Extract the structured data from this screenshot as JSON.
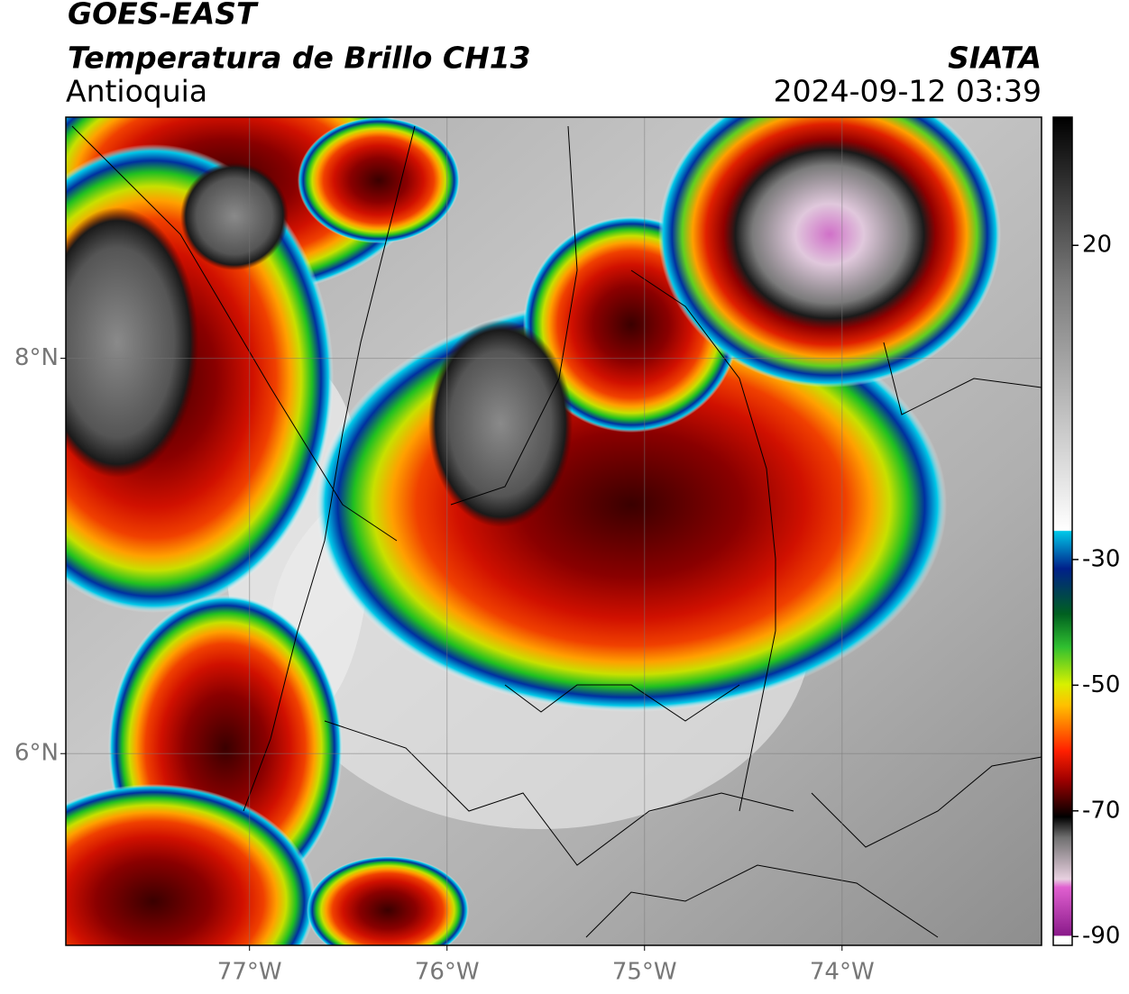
{
  "header": {
    "satellite": "GOES-EAST",
    "product": "Temperatura de Brillo CH13",
    "source": "SIATA",
    "region": "Antioquia",
    "datetime": "2024-09-12 03:39"
  },
  "map": {
    "lonlim": [
      -77.93,
      -72.99
    ],
    "latlim": [
      5.03,
      9.22
    ],
    "lon_ticks": [
      {
        "value": -77,
        "label": "77°W"
      },
      {
        "value": -76,
        "label": "76°W"
      },
      {
        "value": -75,
        "label": "75°W"
      },
      {
        "value": -74,
        "label": "74°W"
      }
    ],
    "lat_ticks": [
      {
        "value": 8,
        "label": "8°N"
      },
      {
        "value": 6,
        "label": "6°N"
      }
    ],
    "grid": true
  },
  "colorbar": {
    "clim": [
      -91.4,
      40.4
    ],
    "ticks": [
      20,
      -30,
      -50,
      -70,
      -90
    ]
  }
}
